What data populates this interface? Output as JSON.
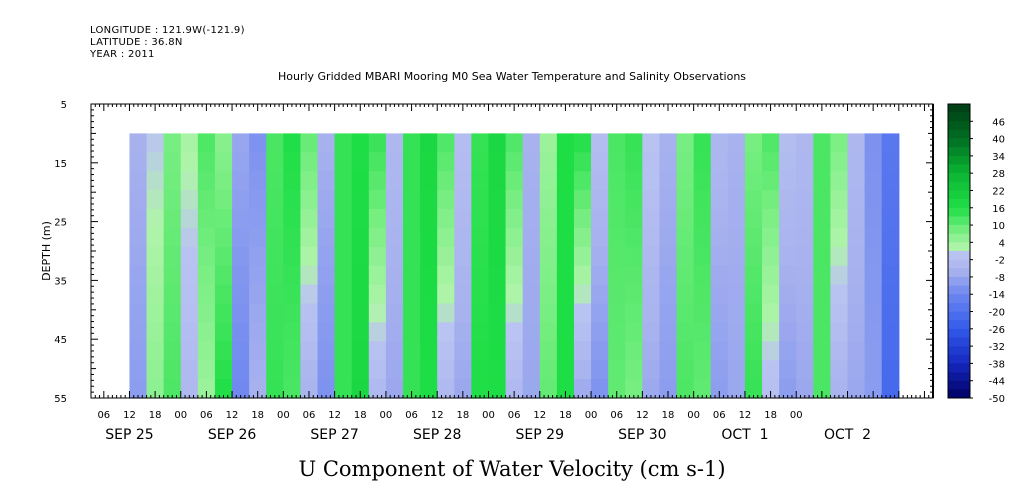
{
  "header": {
    "longitude": "LONGITUDE : 121.9W(-121.9)",
    "latitude": "LATITUDE : 36.8N",
    "year": "YEAR : 2011"
  },
  "chart_data": {
    "type": "heatmap",
    "title": "Hourly Gridded MBARI Mooring M0 Sea Water Temperature and Salinity Observations",
    "xlabel": "U Component of Water Velocity (cm s-1)",
    "ylabel": "DEPTH (m)",
    "ylim": [
      5,
      55
    ],
    "y_ticks": [
      "5",
      "15",
      "25",
      "35",
      "45",
      "55"
    ],
    "data_depth_range": [
      10,
      55
    ],
    "x_hour_labels": [
      "06",
      "12",
      "18",
      "00",
      "06",
      "12",
      "18",
      "00",
      "06",
      "12",
      "18",
      "00",
      "06",
      "12",
      "18",
      "00",
      "06",
      "12",
      "18",
      "00",
      "06",
      "12",
      "18",
      "00",
      "06",
      "12",
      "18",
      "00"
    ],
    "x_day_labels": [
      "SEP 25",
      "SEP 26",
      "SEP 27",
      "SEP 28",
      "SEP 29",
      "SEP 30",
      "OCT  1",
      "OCT  2"
    ],
    "colorbar_labels": [
      "46",
      "40",
      "34",
      "28",
      "22",
      "16",
      "10",
      "4",
      "-2",
      "-8",
      "-14",
      "-20",
      "-26",
      "-32",
      "-38",
      "-44",
      "-50"
    ],
    "colorbar_range": [
      -50,
      52
    ],
    "colors": {
      "strong_negative": "#000066",
      "negative": "#3366ee",
      "weak_negative": "#a8b0ee",
      "weak_positive": "#a8f0a0",
      "positive": "#11dd33",
      "strong_positive": "#004411"
    },
    "series": [
      {
        "times_hours_from_sep25_00": [
          12,
          16,
          20,
          24,
          28,
          32,
          36,
          40,
          44,
          48,
          52,
          56,
          60,
          64,
          68,
          72,
          76,
          80,
          84,
          88,
          92,
          96,
          100,
          104,
          108,
          112,
          116,
          120,
          124,
          128,
          132,
          136,
          140,
          144,
          148,
          152,
          156,
          160,
          164,
          168,
          172,
          176,
          180,
          184,
          188,
          192
        ],
        "u_surface_cm_s": [
          -6,
          0,
          8,
          3,
          12,
          6,
          -8,
          -12,
          12,
          16,
          10,
          -6,
          14,
          16,
          14,
          -4,
          14,
          18,
          12,
          -2,
          14,
          18,
          12,
          -6,
          4,
          16,
          16,
          -2,
          12,
          14,
          0,
          -6,
          8,
          14,
          -4,
          -6,
          8,
          12,
          -2,
          -4,
          12,
          8,
          -4,
          -12,
          -18,
          -14
        ],
        "u_bottom_cm_s": [
          -10,
          6,
          12,
          -4,
          4,
          16,
          -14,
          -6,
          14,
          12,
          -6,
          -12,
          14,
          18,
          -4,
          -8,
          14,
          16,
          -4,
          -8,
          16,
          16,
          -4,
          -8,
          10,
          16,
          -8,
          -12,
          10,
          8,
          -8,
          -10,
          12,
          10,
          -10,
          -8,
          14,
          -2,
          -10,
          -8,
          12,
          -6,
          -8,
          -10,
          -22,
          -16
        ]
      }
    ]
  }
}
